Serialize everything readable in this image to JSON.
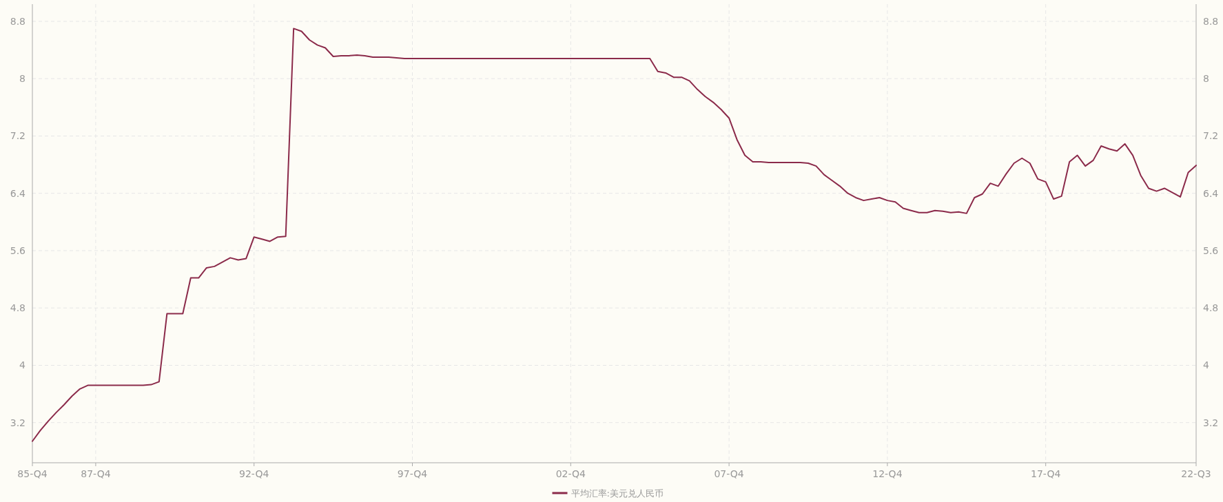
{
  "chart_data": {
    "type": "line",
    "categories": [
      "85-Q4",
      null,
      null,
      null,
      null,
      null,
      null,
      null,
      "87-Q4",
      null,
      null,
      null,
      null,
      null,
      null,
      null,
      null,
      null,
      null,
      null,
      null,
      null,
      null,
      null,
      null,
      null,
      null,
      null,
      "92-Q4",
      null,
      null,
      null,
      null,
      null,
      null,
      null,
      null,
      null,
      null,
      null,
      null,
      null,
      null,
      null,
      null,
      null,
      null,
      null,
      "97-Q4",
      null,
      null,
      null,
      null,
      null,
      null,
      null,
      null,
      null,
      null,
      null,
      null,
      null,
      null,
      null,
      null,
      null,
      null,
      null,
      "02-Q4",
      null,
      null,
      null,
      null,
      null,
      null,
      null,
      null,
      null,
      null,
      null,
      null,
      null,
      null,
      null,
      null,
      null,
      null,
      null,
      "07-Q4",
      null,
      null,
      null,
      null,
      null,
      null,
      null,
      null,
      null,
      null,
      null,
      null,
      null,
      null,
      null,
      null,
      null,
      null,
      null,
      "12-Q4",
      null,
      null,
      null,
      null,
      null,
      null,
      null,
      null,
      null,
      null,
      null,
      null,
      null,
      null,
      null,
      null,
      null,
      null,
      null,
      "17-Q4",
      null,
      null,
      null,
      null,
      null,
      null,
      null,
      null,
      null,
      null,
      null,
      null,
      null,
      null,
      null,
      null,
      null,
      null,
      "22-Q3"
    ],
    "series": [
      {
        "name": "平均汇率:美元兑人民币",
        "color": "#8b2a4a",
        "values": [
          2.94,
          3.09,
          3.22,
          3.34,
          3.45,
          3.57,
          3.67,
          3.72,
          3.72,
          3.72,
          3.72,
          3.72,
          3.72,
          3.72,
          3.72,
          3.73,
          3.77,
          4.72,
          4.72,
          4.72,
          5.22,
          5.22,
          5.36,
          5.38,
          5.44,
          5.5,
          5.47,
          5.49,
          5.79,
          5.76,
          5.73,
          5.79,
          5.8,
          8.7,
          8.66,
          8.54,
          8.47,
          8.43,
          8.31,
          8.32,
          8.32,
          8.33,
          8.32,
          8.3,
          8.3,
          8.3,
          8.29,
          8.28,
          8.28,
          8.28,
          8.28,
          8.28,
          8.28,
          8.28,
          8.28,
          8.28,
          8.28,
          8.28,
          8.28,
          8.28,
          8.28,
          8.28,
          8.28,
          8.28,
          8.28,
          8.28,
          8.28,
          8.28,
          8.28,
          8.28,
          8.28,
          8.28,
          8.28,
          8.28,
          8.28,
          8.28,
          8.28,
          8.28,
          8.28,
          8.1,
          8.08,
          8.02,
          8.02,
          7.97,
          7.85,
          7.75,
          7.67,
          7.57,
          7.45,
          7.15,
          6.93,
          6.84,
          6.84,
          6.83,
          6.83,
          6.83,
          6.83,
          6.83,
          6.82,
          6.78,
          6.66,
          6.58,
          6.5,
          6.4,
          6.34,
          6.3,
          6.32,
          6.34,
          6.3,
          6.28,
          6.19,
          6.16,
          6.13,
          6.13,
          6.16,
          6.15,
          6.13,
          6.14,
          6.12,
          6.34,
          6.39,
          6.54,
          6.5,
          6.67,
          6.82,
          6.89,
          6.82,
          6.6,
          6.56,
          6.32,
          6.36,
          6.84,
          6.93,
          6.78,
          6.86,
          7.06,
          7.02,
          6.99,
          7.09,
          6.93,
          6.65,
          6.47,
          6.43,
          6.47,
          6.41,
          6.35,
          6.69,
          6.79
        ]
      }
    ],
    "ylim": [
      2.64,
      9.04
    ],
    "yticks": [
      3.2,
      4,
      4.8,
      5.6,
      6.4,
      7.2,
      8,
      8.8
    ],
    "y2lim": [
      2.64,
      9.04
    ],
    "y2ticks": [
      3.2,
      4,
      4.8,
      5.6,
      6.4,
      7.2,
      8,
      8.8
    ],
    "grid": true,
    "legend": "bottom"
  }
}
